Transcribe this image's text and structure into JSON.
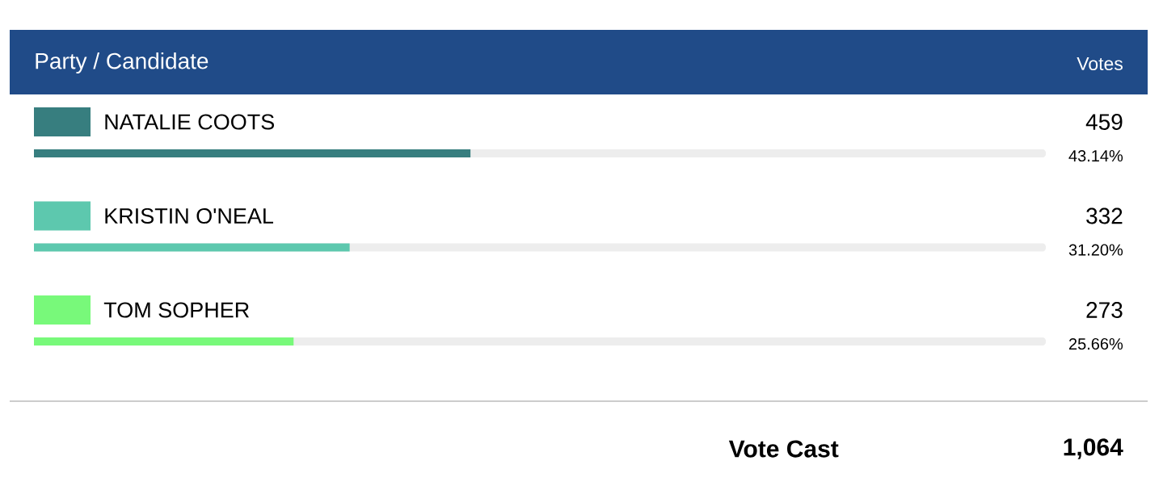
{
  "chart_data": {
    "type": "bar",
    "orientation": "horizontal",
    "ylabel": "Party / Candidate",
    "categories": [
      "NATALIE COOTS",
      "KRISTIN O'NEAL",
      "TOM SOPHER"
    ],
    "values": [
      43.14,
      31.2,
      25.66
    ],
    "value_labels": [
      "43.14%",
      "31.20%",
      "25.66%"
    ],
    "colors": [
      "#377e7f",
      "#5dc8ae",
      "#78f97a"
    ],
    "xlim": [
      0,
      100
    ],
    "tick_labels": "y",
    "annotations": [
      "Votes",
      "459",
      "332",
      "273",
      "Vote Cast",
      "1,064"
    ]
  }
}
